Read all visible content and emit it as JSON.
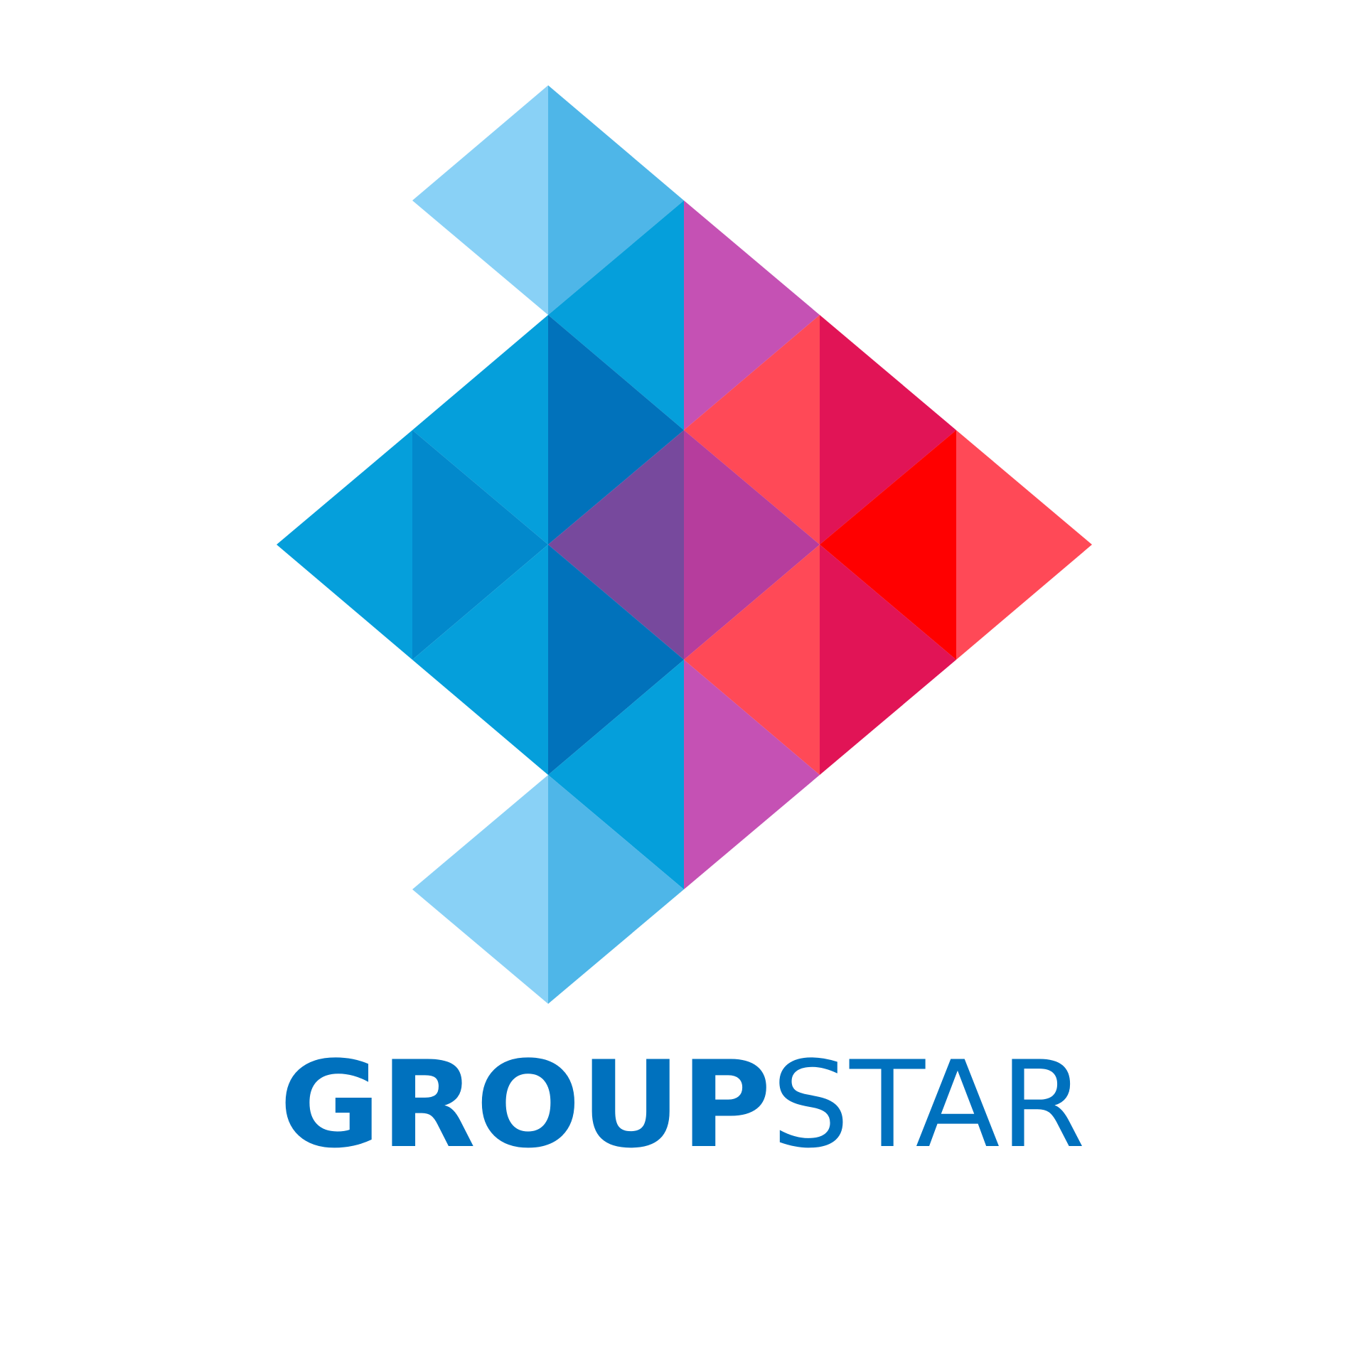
{
  "brand": {
    "name_bold": "GROUP",
    "name_light": "STAR"
  },
  "colors": {
    "background": "#ffffff",
    "wordmark": "#0071be",
    "light_blue": "#89d1f6",
    "sky_blue": "#4eb6e8",
    "cyan": "#059fdb",
    "azure": "#0289cc",
    "deep_blue": "#0172bb",
    "violet": "#77499d",
    "orchid": "#c551b4",
    "magenta_purple": "#b63d9d",
    "coral": "#ff4957",
    "crimson": "#e11456",
    "red": "#ff0000"
  }
}
